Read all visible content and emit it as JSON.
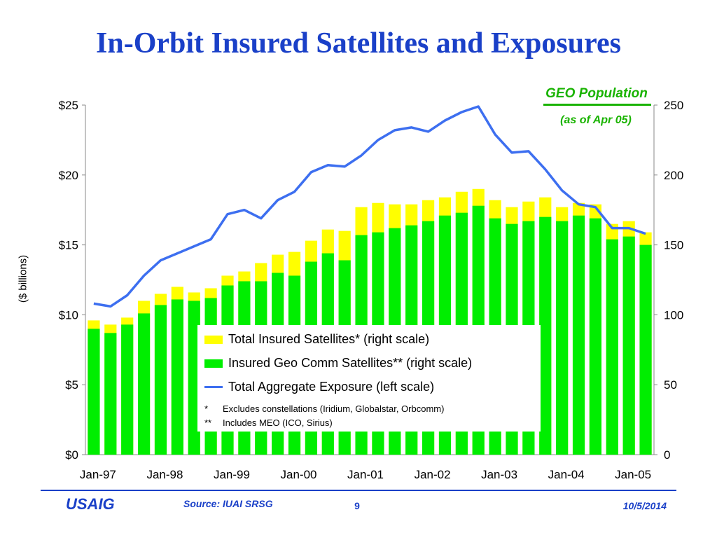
{
  "slide": {
    "title": "In-Orbit Insured Satellites and Exposures",
    "geo_label": "GEO Population",
    "geo_sub": "(as of Apr 05)",
    "footer_logo": "USAIG",
    "source": "Source: IUAI SRSG",
    "page": "9",
    "date": "10/5/2014"
  },
  "legend": {
    "total": "Total Insured Satellites* (right scale)",
    "geo": "Insured Geo Comm Satellites** (right scale)",
    "line": "Total Aggregate Exposure (left scale)",
    "note1_mark": "*",
    "note1": "Excludes constellations (Iridium, Globalstar, Orbcomm)",
    "note2_mark": "**",
    "note2": "Includes MEO (ICO, Sirius)"
  },
  "colors": {
    "title": "#1a40c8",
    "total_bar": "#ffff00",
    "geo_bar": "#00ee00",
    "line": "#3d6ff0",
    "geo_label": "#19b300"
  },
  "chart_data": {
    "type": "bar",
    "ylabel": "($ billions)",
    "ylim_left": [
      0,
      25
    ],
    "ylim_right": [
      0,
      250
    ],
    "left_ticks": [
      "$0",
      "$5",
      "$10",
      "$15",
      "$20",
      "$25"
    ],
    "right_ticks": [
      "0",
      "50",
      "100",
      "150",
      "200",
      "250"
    ],
    "x_tick_labels": [
      "Jan-97",
      "Jan-98",
      "Jan-99",
      "Jan-00",
      "Jan-01",
      "Jan-02",
      "Jan-03",
      "Jan-04",
      "Jan-05"
    ],
    "periods": 34,
    "series": [
      {
        "name": "Total Insured Satellites* (right scale)",
        "axis": "right",
        "kind": "bar",
        "values": [
          96,
          93,
          98,
          110,
          115,
          120,
          116,
          119,
          128,
          131,
          137,
          143,
          145,
          153,
          161,
          160,
          177,
          180,
          179,
          179,
          182,
          184,
          188,
          190,
          182,
          177,
          181,
          184,
          177,
          180,
          179,
          165,
          167,
          159
        ]
      },
      {
        "name": "Insured Geo Comm Satellites** (right scale)",
        "axis": "right",
        "kind": "bar",
        "values": [
          90,
          87,
          93,
          101,
          107,
          111,
          110,
          112,
          121,
          124,
          124,
          130,
          128,
          138,
          144,
          139,
          157,
          159,
          162,
          164,
          167,
          171,
          173,
          178,
          169,
          165,
          167,
          170,
          167,
          171,
          169,
          154,
          156,
          150
        ]
      },
      {
        "name": "Total Aggregate Exposure (left scale)",
        "axis": "left",
        "kind": "line",
        "values": [
          10.8,
          10.6,
          11.4,
          12.8,
          13.9,
          14.4,
          14.9,
          15.4,
          17.2,
          17.5,
          16.9,
          18.2,
          18.8,
          20.2,
          20.7,
          20.6,
          21.4,
          22.5,
          23.2,
          23.4,
          23.1,
          23.9,
          24.5,
          24.9,
          22.9,
          21.6,
          21.7,
          20.4,
          18.9,
          17.9,
          17.7,
          16.2,
          16.2,
          15.8
        ]
      }
    ]
  }
}
